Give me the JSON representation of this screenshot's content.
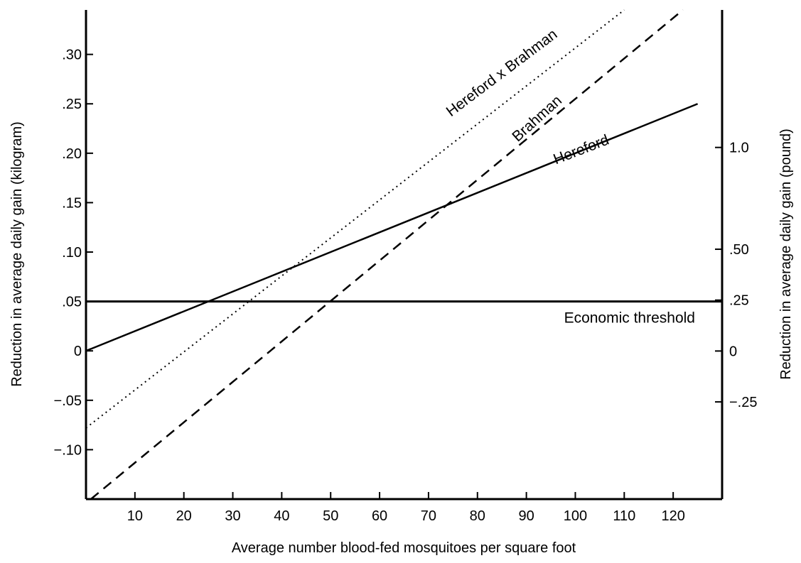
{
  "chart_data": {
    "type": "line",
    "title": "",
    "xlabel": "Average number blood-fed mosquitoes per square foot",
    "ylabel": "Reduction in average daily gain (kilogram)",
    "ylabel_right": "Reduction in average daily gain (pound)",
    "xlim": [
      0,
      130
    ],
    "ylim": [
      -0.15,
      0.345
    ],
    "y2lim": [
      -0.33,
      0.76
    ],
    "x_ticks": [
      10,
      20,
      30,
      40,
      50,
      60,
      70,
      80,
      90,
      100,
      110,
      120
    ],
    "x_tick_labels": [
      "10",
      "20",
      "30",
      "40",
      "50",
      "60",
      "70",
      "80",
      "90",
      "100",
      "110",
      "120"
    ],
    "y_ticks": [
      0.3,
      0.25,
      0.2,
      0.15,
      0.1,
      0.05,
      0,
      -0.05,
      -0.1
    ],
    "y_tick_labels": [
      ".30",
      ".25",
      ".20",
      ".15",
      ".10",
      ".05",
      "0",
      "−.05",
      "−.10"
    ],
    "y2_ticks": [
      0.4536,
      0.2268,
      0.1134,
      0,
      -0.1134
    ],
    "y2_tick_labels": [
      "1.0",
      ".50",
      ".25",
      "0",
      "−.25"
    ],
    "grid": false,
    "series": [
      {
        "name": "Hereford",
        "style": "solid",
        "x": [
          0,
          125
        ],
        "y": [
          0.0,
          0.25
        ]
      },
      {
        "name": "Brahman",
        "style": "dashed",
        "x": [
          1,
          122
        ],
        "y": [
          -0.15,
          0.345
        ]
      },
      {
        "name": "Hereford x Brahman",
        "style": "dotted",
        "x": [
          0,
          110
        ],
        "y": [
          -0.078,
          0.345
        ]
      }
    ],
    "threshold": {
      "label": "Economic threshold",
      "y": 0.05
    }
  }
}
